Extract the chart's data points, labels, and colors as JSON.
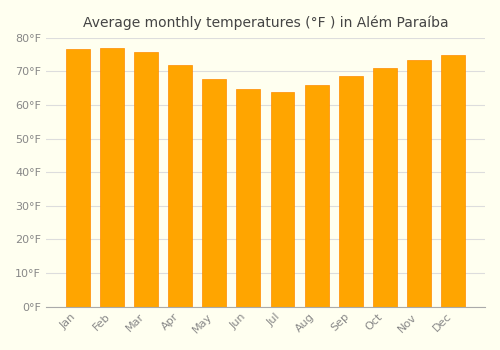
{
  "title": "Average monthly temperatures (°F ) in Além Paraíba",
  "months": [
    "Jan",
    "Feb",
    "Mar",
    "Apr",
    "May",
    "Jun",
    "Jul",
    "Aug",
    "Sep",
    "Oct",
    "Nov",
    "Dec"
  ],
  "values": [
    76.5,
    76.8,
    75.8,
    72.0,
    67.8,
    64.8,
    63.7,
    65.8,
    68.5,
    71.0,
    73.2,
    74.8
  ],
  "bar_color": "#FFA500",
  "bar_edge_color": "#FF8C00",
  "background_color": "#FFFFF0",
  "grid_color": "#DDDDDD",
  "text_color": "#888888",
  "ylim": [
    0,
    80
  ],
  "yticks": [
    0,
    10,
    20,
    30,
    40,
    50,
    60,
    70,
    80
  ],
  "title_fontsize": 10,
  "tick_fontsize": 8
}
